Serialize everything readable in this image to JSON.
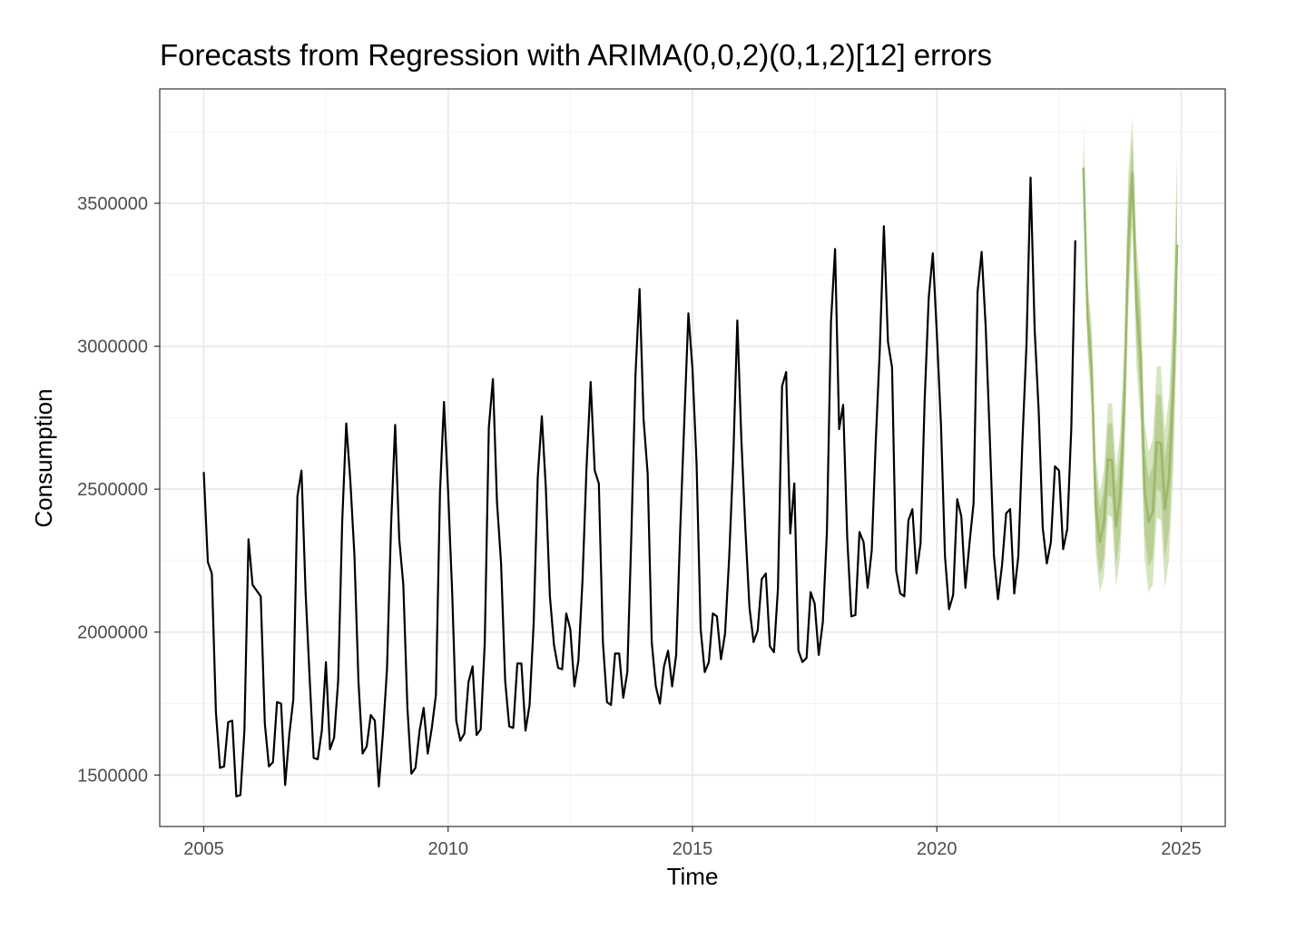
{
  "chart_data": {
    "type": "line",
    "title": "Forecasts from Regression with ARIMA(0,0,2)(0,1,2)[12] errors",
    "xlabel": "Time",
    "ylabel": "Consumption",
    "xlim": [
      2004.1,
      2025.9
    ],
    "ylim": [
      1320000,
      3900000
    ],
    "x_ticks": [
      2005,
      2010,
      2015,
      2020,
      2025
    ],
    "y_ticks": [
      1500000,
      2000000,
      2500000,
      3000000,
      3500000
    ],
    "grid": true,
    "colors": {
      "history": "#000000",
      "forecast": "#9cb86a",
      "band_80": "#b9cf95",
      "band_95": "#d6e4c0",
      "grid_major": "#ebebeb",
      "grid_minor": "#f4f4f4",
      "panel_border": "#333333"
    },
    "series": [
      {
        "role": "history",
        "start": 2005.0,
        "step": 0.0833333,
        "values": [
          2560000,
          2245000,
          2205000,
          1720000,
          1525000,
          1530000,
          1685000,
          1690000,
          1425000,
          1430000,
          1655000,
          2325000,
          2165000,
          2145000,
          2125000,
          1680000,
          1530000,
          1545000,
          1755000,
          1750000,
          1465000,
          1640000,
          1765000,
          2475000,
          2565000,
          2140000,
          1845000,
          1560000,
          1555000,
          1655000,
          1895000,
          1590000,
          1630000,
          1830000,
          2390000,
          2730000,
          2530000,
          2270000,
          1825000,
          1575000,
          1600000,
          1710000,
          1690000,
          1460000,
          1645000,
          1870000,
          2375000,
          2725000,
          2325000,
          2165000,
          1735000,
          1505000,
          1525000,
          1655000,
          1735000,
          1575000,
          1665000,
          1780000,
          2490000,
          2805000,
          2495000,
          2140000,
          1690000,
          1620000,
          1645000,
          1825000,
          1880000,
          1640000,
          1660000,
          1960000,
          2715000,
          2885000,
          2455000,
          2240000,
          1830000,
          1670000,
          1665000,
          1890000,
          1890000,
          1655000,
          1745000,
          2030000,
          2540000,
          2755000,
          2505000,
          2125000,
          1955000,
          1875000,
          1870000,
          2065000,
          2010000,
          1810000,
          1900000,
          2180000,
          2580000,
          2875000,
          2565000,
          2520000,
          1965000,
          1755000,
          1745000,
          1925000,
          1925000,
          1770000,
          1860000,
          2345000,
          2900000,
          3200000,
          2745000,
          2555000,
          1965000,
          1810000,
          1750000,
          1880000,
          1935000,
          1810000,
          1920000,
          2360000,
          2740000,
          3115000,
          2920000,
          2590000,
          2010000,
          1860000,
          1895000,
          2065000,
          2055000,
          1905000,
          1995000,
          2260000,
          2605000,
          3090000,
          2670000,
          2360000,
          2085000,
          1965000,
          2005000,
          2185000,
          2205000,
          1950000,
          1930000,
          2155000,
          2860000,
          2910000,
          2345000,
          2520000,
          1935000,
          1895000,
          1910000,
          2140000,
          2100000,
          1920000,
          2035000,
          2350000,
          3085000,
          3340000,
          2710000,
          2795000,
          2330000,
          2055000,
          2060000,
          2350000,
          2315000,
          2155000,
          2285000,
          2665000,
          2990000,
          3420000,
          3015000,
          2925000,
          2215000,
          2135000,
          2125000,
          2390000,
          2430000,
          2205000,
          2310000,
          2810000,
          3170000,
          3325000,
          3040000,
          2725000,
          2265000,
          2080000,
          2130000,
          2465000,
          2405000,
          2155000,
          2310000,
          2450000,
          3190000,
          3330000,
          3065000,
          2680000,
          2270000,
          2115000,
          2235000,
          2415000,
          2430000,
          2135000,
          2265000,
          2665000,
          3005000,
          3590000,
          3060000,
          2770000,
          2365000,
          2240000,
          2315000,
          2580000,
          2565000,
          2290000,
          2360000,
          2715000,
          3370000
        ]
      },
      {
        "role": "forecast",
        "start": 2023.0,
        "step": 0.0833333,
        "values": [
          3625000,
          3100000,
          2925000,
          2440000,
          2315000,
          2380000,
          2605000,
          2600000,
          2370000,
          2480000,
          2790000,
          3365000,
          3605000,
          3145000,
          2965000,
          2495000,
          2385000,
          2420000,
          2665000,
          2660000,
          2430000,
          2540000,
          2845000,
          3355000
        ],
        "lo80": [
          3555000,
          3020000,
          2825000,
          2330000,
          2200000,
          2260000,
          2480000,
          2470000,
          2235000,
          2340000,
          2645000,
          3210000,
          3495000,
          3010000,
          2820000,
          2345000,
          2230000,
          2260000,
          2500000,
          2490000,
          2255000,
          2360000,
          2660000,
          3160000
        ],
        "hi80": [
          3695000,
          3180000,
          3025000,
          2550000,
          2430000,
          2500000,
          2730000,
          2730000,
          2505000,
          2620000,
          2935000,
          3520000,
          3715000,
          3280000,
          3110000,
          2645000,
          2540000,
          2580000,
          2830000,
          2830000,
          2605000,
          2720000,
          3030000,
          3550000
        ],
        "lo95": [
          3515000,
          2975000,
          2770000,
          2270000,
          2140000,
          2195000,
          2410000,
          2400000,
          2160000,
          2265000,
          2570000,
          3125000,
          3415000,
          2930000,
          2735000,
          2260000,
          2140000,
          2165000,
          2400000,
          2390000,
          2155000,
          2255000,
          2550000,
          3040000
        ],
        "hi95": [
          3780000,
          3225000,
          3080000,
          2610000,
          2490000,
          2565000,
          2800000,
          2800000,
          2580000,
          2695000,
          3010000,
          3605000,
          3795000,
          3360000,
          3195000,
          2730000,
          2630000,
          2675000,
          2930000,
          2930000,
          2705000,
          2825000,
          3140000,
          3670000
        ]
      }
    ]
  }
}
